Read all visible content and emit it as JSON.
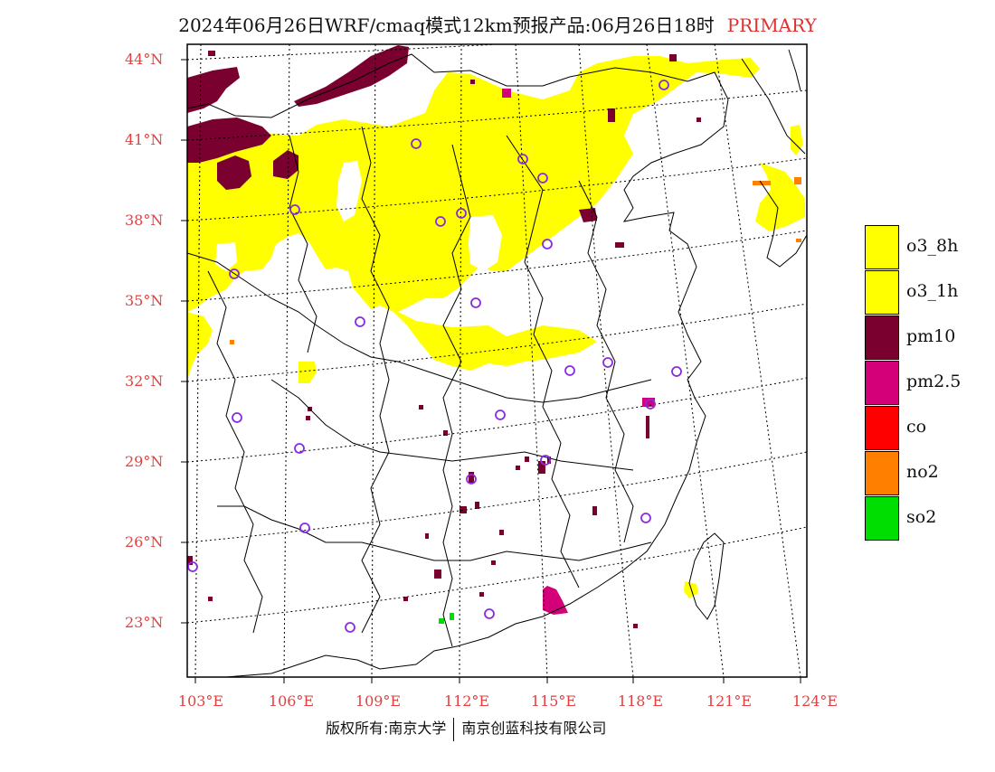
{
  "title": {
    "main": "2024年06月26日WRF/cmaq模式12km预报产品:06月26日18时",
    "tag": "PRIMARY"
  },
  "axes": {
    "latitudes": [
      "44°N",
      "41°N",
      "38°N",
      "35°N",
      "32°N",
      "29°N",
      "26°N",
      "23°N"
    ],
    "longitudes": [
      "103°E",
      "106°E",
      "109°E",
      "112°E",
      "115°E",
      "118°E",
      "121°E",
      "124°E"
    ]
  },
  "legend": [
    {
      "label": "o3_8h",
      "color": "#ffff00"
    },
    {
      "label": "o3_1h",
      "color": "#ffff00"
    },
    {
      "label": "pm10",
      "color": "#7a0030"
    },
    {
      "label": "pm2.5",
      "color": "#d4007a"
    },
    {
      "label": "co",
      "color": "#ff0000"
    },
    {
      "label": "no2",
      "color": "#ff7f00"
    },
    {
      "label": "so2",
      "color": "#00dd00"
    }
  ],
  "footer": {
    "left": "版权所有:南京大学",
    "right": "南京创蓝科技有限公司"
  },
  "colors": {
    "axis_label": "#e04040",
    "station_marker": "#8a2be2"
  }
}
